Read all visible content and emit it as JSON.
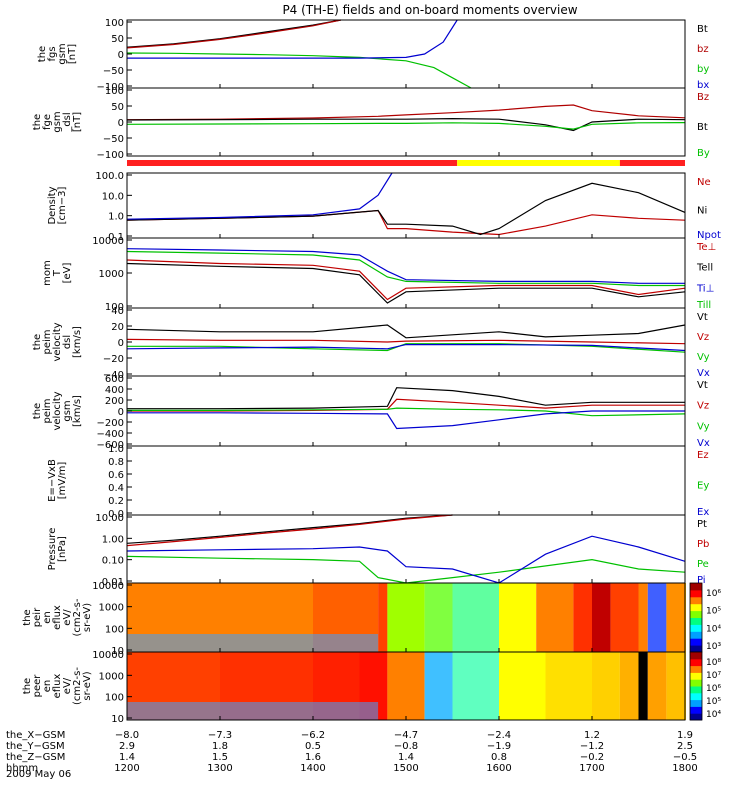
{
  "title": "P4 (TH-E) fields and on-board moments overview",
  "date_label": "2009 May 06",
  "colorbar_gradient": [
    "#000090",
    "#0000ff",
    "#00a0ff",
    "#00ffff",
    "#00ff80",
    "#80ff00",
    "#ffff00",
    "#ff8000",
    "#ff0000",
    "#a00000"
  ],
  "chart_data": [
    {
      "type": "line",
      "ylabel": [
        "the",
        "fgs",
        "gsm",
        "[nT]"
      ],
      "yticks": [
        "100",
        "50",
        "0",
        "−50",
        "−100"
      ],
      "ylim": [
        -100,
        100
      ],
      "series": [
        {
          "name": "Bt",
          "color": "#000000",
          "x": [
            12.0,
            12.5,
            13.0,
            13.5,
            14.0,
            14.3
          ],
          "y": [
            20,
            30,
            45,
            65,
            85,
            100
          ]
        },
        {
          "name": "bz",
          "color": "#b00000",
          "x": [
            12.0,
            12.5,
            13.0,
            13.5,
            14.0,
            14.3
          ],
          "y": [
            18,
            28,
            43,
            62,
            83,
            100
          ]
        },
        {
          "name": "by",
          "color": "#00c000",
          "x": [
            12.0,
            12.5,
            13.0,
            13.5,
            14.0,
            14.5,
            15.0,
            15.3,
            15.5,
            15.7
          ],
          "y": [
            3,
            2,
            0,
            -2,
            -5,
            -10,
            -20,
            -40,
            -70,
            -100
          ]
        },
        {
          "name": "bx",
          "color": "#0000d0",
          "x": [
            12.0,
            12.5,
            13.0,
            13.5,
            14.0,
            14.5,
            15.0,
            15.2,
            15.4,
            15.55
          ],
          "y": [
            -12,
            -12,
            -12,
            -12,
            -12,
            -12,
            -10,
            0,
            35,
            100
          ]
        }
      ]
    },
    {
      "type": "line",
      "ylabel": [
        "the",
        "fge",
        "gsm",
        "_dsl",
        "[nT]"
      ],
      "yticks": [
        "100",
        "50",
        "0",
        "−50",
        "−100"
      ],
      "ylim": [
        -120,
        120
      ],
      "series": [
        {
          "name": "Bz",
          "color": "#b00000",
          "x": [
            12.0,
            13.0,
            14.0,
            14.7,
            15.0,
            15.5,
            16.0,
            16.5,
            16.8,
            17.0,
            17.5,
            18.0
          ],
          "y": [
            8,
            10,
            14,
            20,
            25,
            33,
            42,
            55,
            60,
            40,
            22,
            15
          ]
        },
        {
          "name": "Bt",
          "color": "#000000",
          "x": [
            12.0,
            13.0,
            14.0,
            14.7,
            15.0,
            15.5,
            16.0,
            16.5,
            16.8,
            17.0,
            17.5,
            18.0
          ],
          "y": [
            7,
            8,
            10,
            10,
            10,
            12,
            10,
            -10,
            -30,
            0,
            10,
            8
          ]
        },
        {
          "name": "By",
          "color": "#00c000",
          "x": [
            12.0,
            13.0,
            14.0,
            14.7,
            15.0,
            15.5,
            16.0,
            16.5,
            16.8,
            17.0,
            17.5,
            18.0
          ],
          "y": [
            -8,
            -7,
            -6,
            -5,
            -5,
            -3,
            -5,
            -15,
            -25,
            -8,
            -3,
            -2
          ]
        }
      ]
    },
    {
      "type": "line",
      "ylabel": [
        "Density",
        "[cm−3]"
      ],
      "yticks": [
        "100.0",
        "10.0",
        "1.0",
        "0.1"
      ],
      "scale": "log",
      "ylim": [
        0.1,
        200
      ],
      "series": [
        {
          "name": "Ne",
          "color": "#c00000",
          "x": [
            12.0,
            13.0,
            14.0,
            14.7,
            14.8,
            15.0,
            15.5,
            16.0,
            16.5,
            17.0,
            17.5,
            18.0
          ],
          "y": [
            0.8,
            1.0,
            1.3,
            2.5,
            0.3,
            0.3,
            0.2,
            0.15,
            0.4,
            1.5,
            1.0,
            0.8
          ]
        },
        {
          "name": "Ni",
          "color": "#000000",
          "x": [
            12.0,
            13.0,
            14.0,
            14.7,
            14.8,
            15.0,
            15.5,
            15.8,
            16.0,
            16.5,
            17.0,
            17.5,
            18.0
          ],
          "y": [
            0.8,
            1.0,
            1.3,
            2.5,
            0.5,
            0.5,
            0.4,
            0.15,
            0.3,
            8,
            60,
            20,
            2
          ]
        },
        {
          "name": "Npot",
          "color": "#0000d0",
          "x": [
            12.0,
            13.0,
            14.0,
            14.5,
            14.7,
            14.85
          ],
          "y": [
            0.9,
            1.1,
            1.5,
            3,
            15,
            200
          ]
        }
      ]
    },
    {
      "type": "line",
      "ylabel": [
        "mom",
        "T",
        "[eV]"
      ],
      "yticks": [
        "10000",
        "1000",
        "100"
      ],
      "scale": "log",
      "ylim": [
        40,
        12000
      ],
      "series": [
        {
          "name": "Te⊥",
          "color": "#c00000",
          "x": [
            12.0,
            13.0,
            14.0,
            14.5,
            14.8,
            15.0,
            16.0,
            17.0,
            17.5,
            18.0
          ],
          "y": [
            2000,
            1500,
            1300,
            800,
            80,
            200,
            250,
            250,
            120,
            200
          ]
        },
        {
          "name": "Tell",
          "color": "#000000",
          "x": [
            12.0,
            13.0,
            14.0,
            14.5,
            14.8,
            15.0,
            16.0,
            17.0,
            17.5,
            18.0
          ],
          "y": [
            1500,
            1200,
            1000,
            600,
            60,
            150,
            200,
            200,
            100,
            150
          ]
        },
        {
          "name": "Ti⊥",
          "color": "#0000d0",
          "x": [
            12.0,
            13.0,
            14.0,
            14.5,
            14.8,
            15.0,
            16.0,
            17.0,
            17.5,
            18.0
          ],
          "y": [
            5000,
            4500,
            4000,
            3000,
            800,
            400,
            350,
            350,
            300,
            300
          ]
        },
        {
          "name": "Till",
          "color": "#00c000",
          "x": [
            12.0,
            13.0,
            14.0,
            14.5,
            14.8,
            15.0,
            16.0,
            17.0,
            17.5,
            18.0
          ],
          "y": [
            4000,
            3500,
            3000,
            2000,
            500,
            350,
            300,
            300,
            250,
            250
          ]
        }
      ]
    },
    {
      "type": "line",
      "ylabel": [
        "the",
        "peim",
        "velocity",
        "dsl",
        "[km/s]"
      ],
      "yticks": [
        "40",
        "20",
        "0",
        "−20",
        "−40"
      ],
      "ylim": [
        -40,
        40
      ],
      "series": [
        {
          "name": "Vt",
          "color": "#000000",
          "x": [
            12.0,
            13.0,
            14.0,
            14.8,
            15.0,
            16.0,
            16.5,
            17.0,
            17.5,
            18.0
          ],
          "y": [
            15,
            12,
            12,
            20,
            5,
            12,
            6,
            8,
            10,
            20
          ]
        },
        {
          "name": "Vz",
          "color": "#c00000",
          "x": [
            12.0,
            13.0,
            14.0,
            14.8,
            15.0,
            16.0,
            17.0,
            18.0
          ],
          "y": [
            3,
            2,
            2,
            0,
            1,
            2,
            0,
            -2
          ]
        },
        {
          "name": "Vy",
          "color": "#00c000",
          "x": [
            12.0,
            13.0,
            14.0,
            14.8,
            15.0,
            16.0,
            17.0,
            18.0
          ],
          "y": [
            -5,
            -5,
            -8,
            -10,
            -2,
            -2,
            -5,
            -12
          ]
        },
        {
          "name": "Vx",
          "color": "#0000d0",
          "x": [
            12.0,
            13.0,
            14.0,
            14.8,
            15.0,
            16.0,
            17.0,
            18.0
          ],
          "y": [
            -8,
            -7,
            -6,
            -8,
            -3,
            -3,
            -4,
            -10
          ]
        }
      ]
    },
    {
      "type": "line",
      "ylabel": [
        "the",
        "peim",
        "velocity",
        "gsm",
        "[km/s]"
      ],
      "yticks": [
        "600",
        "400",
        "200",
        "0",
        "−200",
        "−400",
        "−600"
      ],
      "ylim": [
        -600,
        600
      ],
      "series": [
        {
          "name": "Vt",
          "color": "#000000",
          "x": [
            12.0,
            13.0,
            14.0,
            14.8,
            14.9,
            15.5,
            16.0,
            16.5,
            17.0,
            18.0
          ],
          "y": [
            40,
            40,
            50,
            80,
            400,
            350,
            250,
            100,
            150,
            150
          ]
        },
        {
          "name": "Vz",
          "color": "#c00000",
          "x": [
            12.0,
            13.0,
            14.0,
            14.8,
            14.9,
            15.5,
            16.0,
            16.5,
            17.0,
            18.0
          ],
          "y": [
            0,
            0,
            10,
            30,
            200,
            150,
            100,
            50,
            100,
            100
          ]
        },
        {
          "name": "Vy",
          "color": "#00c000",
          "x": [
            12.0,
            13.0,
            14.0,
            14.8,
            14.9,
            15.5,
            16.0,
            16.5,
            17.0,
            18.0
          ],
          "y": [
            10,
            10,
            20,
            30,
            50,
            30,
            20,
            0,
            -80,
            -50
          ]
        },
        {
          "name": "Vx",
          "color": "#0000d0",
          "x": [
            12.0,
            13.0,
            14.0,
            14.8,
            14.9,
            15.5,
            16.0,
            16.5,
            17.0,
            18.0
          ],
          "y": [
            -30,
            -30,
            -40,
            -50,
            -300,
            -250,
            -150,
            -50,
            0,
            0
          ]
        }
      ]
    },
    {
      "type": "line",
      "ylabel": [
        "E=−VxB",
        "[mV/m]"
      ],
      "yticks": [
        "1.0",
        "0.8",
        "0.6",
        "0.4",
        "0.2",
        "0.0"
      ],
      "ylim": [
        0,
        1
      ],
      "series": [
        {
          "name": "Ez",
          "color": "#c00000",
          "x": [],
          "y": []
        },
        {
          "name": "Ey",
          "color": "#00c000",
          "x": [],
          "y": []
        },
        {
          "name": "Ex",
          "color": "#0000d0",
          "x": [],
          "y": []
        }
      ]
    },
    {
      "type": "line",
      "ylabel": [
        "Pressure",
        "[nPa]"
      ],
      "yticks": [
        "10.00",
        "1.00",
        "0.10",
        "0.01"
      ],
      "scale": "log",
      "ylim": [
        0.005,
        30
      ],
      "series": [
        {
          "name": "Pt",
          "color": "#000000",
          "x": [
            12.0,
            12.5,
            13.0,
            13.5,
            14.0,
            14.5,
            15.0,
            15.5
          ],
          "y": [
            0.8,
            1.2,
            2.0,
            3.5,
            6,
            10,
            20,
            30
          ]
        },
        {
          "name": "Pb",
          "color": "#c00000",
          "x": [
            12.0,
            12.5,
            13.0,
            13.5,
            14.0,
            14.5,
            15.0,
            15.5
          ],
          "y": [
            0.6,
            1.0,
            1.7,
            3.0,
            5,
            9,
            18,
            30
          ]
        },
        {
          "name": "Pe",
          "color": "#00c000",
          "x": [
            12.0,
            13.0,
            14.0,
            14.5,
            14.7,
            15.0,
            15.5,
            16.0,
            17.0,
            17.5,
            18.0
          ],
          "y": [
            0.15,
            0.12,
            0.1,
            0.08,
            0.01,
            0.005,
            0.01,
            0.02,
            0.1,
            0.03,
            0.02
          ]
        },
        {
          "name": "Pi",
          "color": "#0000d0",
          "x": [
            12.0,
            13.0,
            14.0,
            14.5,
            14.8,
            15.0,
            15.5,
            16.0,
            16.5,
            17.0,
            17.5,
            18.0
          ],
          "y": [
            0.3,
            0.35,
            0.4,
            0.5,
            0.3,
            0.04,
            0.03,
            0.005,
            0.2,
            2,
            0.5,
            0.08
          ]
        }
      ]
    },
    {
      "type": "heatmap",
      "ylabel": [
        "the",
        "peir",
        "en",
        "eflux",
        "eV/",
        "(cm2-s-",
        "sr-eV)"
      ],
      "yticks": [
        "10000",
        "1000",
        "100",
        "10"
      ],
      "colorbar_ticks": [
        "10⁶",
        "10⁵",
        "10⁴",
        "10³"
      ],
      "x": [
        12.0,
        13.0,
        14.0,
        14.7,
        14.8,
        15.2,
        15.5,
        16.0,
        16.4,
        16.8,
        17.0,
        17.2,
        17.5,
        17.6,
        17.8,
        18.0
      ],
      "band_colors": [
        "#ff8000",
        "#ff8000",
        "#ff6000",
        "#ff4000",
        "#a0ff00",
        "#80ff40",
        "#60ffa0",
        "#ffff00",
        "#ff8000",
        "#ff3000",
        "#c00000",
        "#ff4000",
        "#ff8000",
        "#4060ff",
        "#ff9000",
        "#ffc000"
      ]
    },
    {
      "type": "heatmap",
      "ylabel": [
        "the",
        "peer",
        "en",
        "eflux",
        "eV/",
        "(cm2-s-",
        "sr-eV)"
      ],
      "yticks": [
        "10000",
        "1000",
        "100",
        "10"
      ],
      "colorbar_ticks": [
        "10⁸",
        "10⁷",
        "10⁶",
        "10⁵",
        "10⁴"
      ],
      "x": [
        12.0,
        13.0,
        14.0,
        14.5,
        14.8,
        15.2,
        15.5,
        16.0,
        16.5,
        17.0,
        17.3,
        17.5,
        17.6,
        17.8,
        18.0
      ],
      "band_colors": [
        "#ff4000",
        "#ff3000",
        "#ff2000",
        "#ff1000",
        "#ff8000",
        "#40c0ff",
        "#60ffc0",
        "#ffff00",
        "#ffe000",
        "#ffd000",
        "#ffb000",
        "#000000",
        "#ffa000",
        "#ffc000",
        "#ffd000"
      ]
    }
  ],
  "x_axis": {
    "row_labels": [
      "the_X−GSM",
      "the_Y−GSM",
      "the_Z−GSM",
      "hhmm"
    ],
    "rows": [
      [
        "−8.0",
        "−7.3",
        "−6.2",
        "−4.7",
        "−2.4",
        "1.2",
        "1.9"
      ],
      [
        "2.9",
        "1.8",
        "0.5",
        "−0.8",
        "−1.9",
        "−1.2",
        "2.5"
      ],
      [
        "1.4",
        "1.5",
        "1.6",
        "1.4",
        "0.8",
        "−0.2",
        "−0.5"
      ],
      [
        "1200",
        "1300",
        "1400",
        "1500",
        "1600",
        "1700",
        "1800"
      ]
    ]
  }
}
